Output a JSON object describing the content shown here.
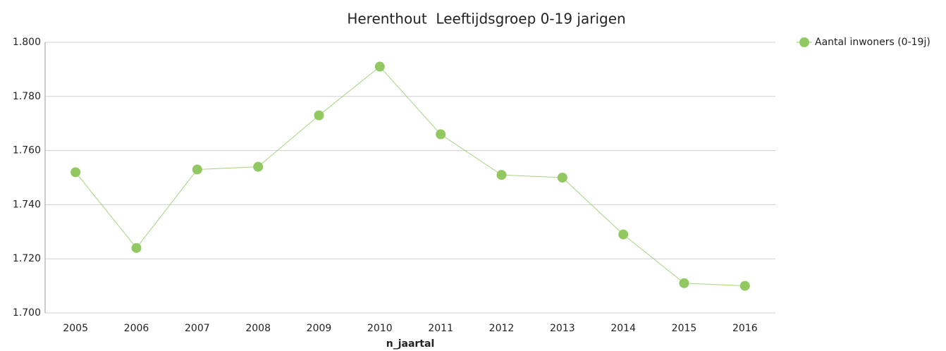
{
  "chart_data": {
    "type": "line",
    "title": "Herenthout  Leeftijdsgroep 0-19 jarigen",
    "x_label": "n_jaartal",
    "categories": [
      "2005",
      "2006",
      "2007",
      "2008",
      "2009",
      "2010",
      "2011",
      "2012",
      "2013",
      "2014",
      "2015",
      "2016"
    ],
    "series": [
      {
        "name": "Aantal inwoners (0-19j)",
        "color": "#92c862",
        "values": [
          1752,
          1724,
          1753,
          1754,
          1773,
          1791,
          1766,
          1751,
          1750,
          1729,
          1711,
          1710
        ]
      }
    ],
    "ylim": [
      1700,
      1800
    ],
    "yticks": [
      {
        "value": 1700,
        "label": "1.700"
      },
      {
        "value": 1720,
        "label": "1.720"
      },
      {
        "value": 1740,
        "label": "1.740"
      },
      {
        "value": 1760,
        "label": "1.760"
      },
      {
        "value": 1780,
        "label": "1.780"
      },
      {
        "value": 1800,
        "label": "1.800"
      }
    ],
    "grid": true,
    "legend": "right"
  }
}
